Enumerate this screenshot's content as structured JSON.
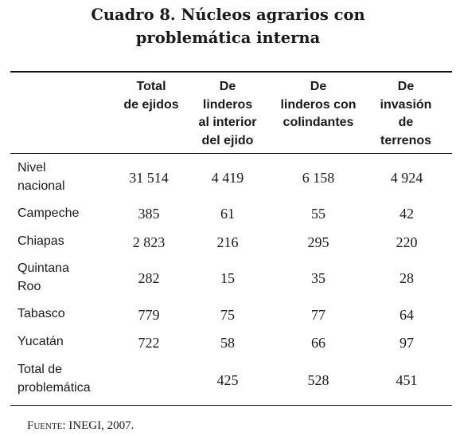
{
  "title": {
    "line1": "Cuadro 8. Núcleos agrarios con",
    "line2": "problemática interna"
  },
  "columns": [
    {
      "lines": [
        "Total",
        "de ejidos"
      ]
    },
    {
      "lines": [
        "De",
        "linderos",
        "al interior",
        "del ejido"
      ]
    },
    {
      "lines": [
        "De",
        "linderos con",
        "colindantes"
      ]
    },
    {
      "lines": [
        "De",
        "invasión",
        "de",
        "terrenos"
      ]
    }
  ],
  "rows": [
    {
      "label": [
        "Nivel",
        "nacional"
      ],
      "values": [
        "31 514",
        "4 419",
        "6 158",
        "4 924"
      ]
    },
    {
      "label": [
        "Campeche"
      ],
      "values": [
        "385",
        "61",
        "55",
        "42"
      ]
    },
    {
      "label": [
        "Chiapas"
      ],
      "values": [
        "2 823",
        "216",
        "295",
        "220"
      ]
    },
    {
      "label": [
        "Quintana",
        "Roo"
      ],
      "values": [
        "282",
        "15",
        "35",
        "28"
      ]
    },
    {
      "label": [
        "Tabasco"
      ],
      "values": [
        "779",
        "75",
        "77",
        "64"
      ]
    },
    {
      "label": [
        "Yucatán"
      ],
      "values": [
        "722",
        "58",
        "66",
        "97"
      ]
    },
    {
      "label": [
        "Total de",
        "problemática"
      ],
      "values": [
        "",
        "425",
        "528",
        "451"
      ]
    }
  ],
  "source": {
    "label": "Fuente",
    "text": ": INEGI, 2007."
  }
}
